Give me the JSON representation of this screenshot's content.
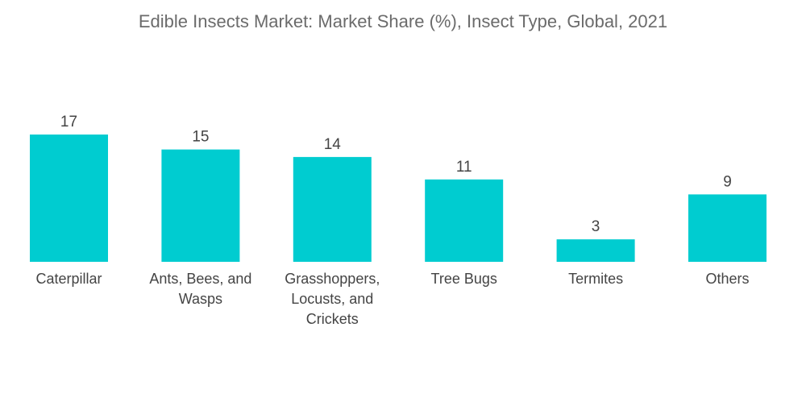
{
  "chart_data": {
    "type": "bar",
    "title": "Edible Insects Market: Market Share (%), Insect Type, Global, 2021",
    "categories": [
      "Caterpillar",
      "Ants, Bees, and Wasps",
      "Grasshoppers, Locusts, and Crickets",
      "Tree Bugs",
      "Termites",
      "Others"
    ],
    "category_lines": [
      [
        "Caterpillar"
      ],
      [
        "Ants, Bees, and",
        "Wasps"
      ],
      [
        "Grasshoppers,",
        "Locusts, and",
        "Crickets"
      ],
      [
        "Tree Bugs"
      ],
      [
        "Termites"
      ],
      [
        "Others"
      ]
    ],
    "values": [
      17,
      15,
      14,
      11,
      3,
      9
    ],
    "xlabel": "",
    "ylabel": "",
    "ylim": [
      0,
      17
    ],
    "grid": false,
    "data_labels": true,
    "bar_color": "#00CCD0"
  }
}
